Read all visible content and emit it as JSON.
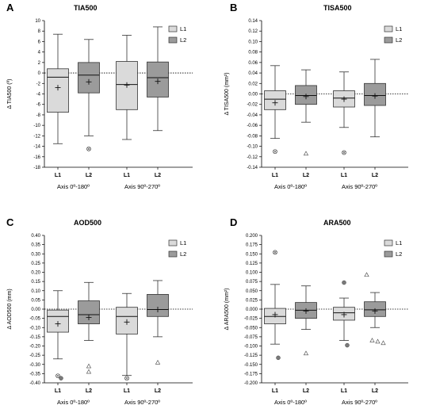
{
  "colors": {
    "L1": "#dadada",
    "L2": "#9b9b9b",
    "stroke": "#333333",
    "outlier_dot": "#7a7a7a"
  },
  "legend_labels": [
    "L1",
    "L2"
  ],
  "chart_data": [
    {
      "type": "box",
      "panel_letter": "A",
      "title": "TIA500",
      "ylabel": "Δ TIA500 (º)",
      "ylim": [
        -18,
        10
      ],
      "yticks": [
        -18,
        -16,
        -14,
        -12,
        -10,
        -8,
        -6,
        -4,
        -2,
        0,
        2,
        4,
        6,
        8,
        10
      ],
      "yticklabels": [
        "-18",
        "-16",
        "-14",
        "-12",
        "-10",
        "-8",
        "-6",
        "-4",
        "-2",
        "0",
        "2",
        "4",
        "6",
        "8",
        "10"
      ],
      "reference_line": 0,
      "legend_position": "top-right",
      "groups": [
        "Axis 0º-180º",
        "Axis 90º-270º"
      ],
      "categories": [
        "L1",
        "L2",
        "L1",
        "L2"
      ],
      "boxes": [
        {
          "series": "L1",
          "min": -13.5,
          "q1": -7.5,
          "median": -0.8,
          "q3": 0.8,
          "max": 7.4,
          "mean": -2.8,
          "outliers": []
        },
        {
          "series": "L2",
          "min": -12.0,
          "q1": -3.8,
          "median": -0.4,
          "q3": 2.0,
          "max": 6.4,
          "mean": -1.7,
          "outliers": [
            {
              "v": -14.5,
              "m": "xcircle"
            }
          ]
        },
        {
          "series": "L1",
          "min": -12.7,
          "q1": -7.0,
          "median": -2.2,
          "q3": 2.2,
          "max": 7.2,
          "mean": -2.3,
          "outliers": []
        },
        {
          "series": "L2",
          "min": -11.0,
          "q1": -4.6,
          "median": -0.9,
          "q3": 2.1,
          "max": 8.8,
          "mean": -1.6,
          "outliers": []
        }
      ]
    },
    {
      "type": "box",
      "panel_letter": "B",
      "title": "TISA500",
      "ylabel": "Δ TISA500 (mm²)",
      "ylim": [
        -0.14,
        0.14
      ],
      "yticks": [
        -0.14,
        -0.12,
        -0.1,
        -0.08,
        -0.06,
        -0.04,
        -0.02,
        0,
        0.02,
        0.04,
        0.06,
        0.08,
        0.1,
        0.12,
        0.14
      ],
      "yticklabels": [
        "-0.14",
        "-0.12",
        "-0.10",
        "-0.08",
        "-0.06",
        "-0.04",
        "-0.02",
        "0.00",
        "0.02",
        "0.04",
        "0.06",
        "0.08",
        "0.10",
        "0.12",
        "0.14"
      ],
      "reference_line": 0,
      "legend_position": "top-right",
      "groups": [
        "Axis 0º-180º",
        "Axis 90º-270º"
      ],
      "categories": [
        "L1",
        "L2",
        "L1",
        "L2"
      ],
      "boxes": [
        {
          "series": "L1",
          "min": -0.085,
          "q1": -0.03,
          "median": -0.01,
          "q3": 0.006,
          "max": 0.054,
          "mean": -0.017,
          "outliers": [
            {
              "v": -0.11,
              "m": "xcircle"
            }
          ]
        },
        {
          "series": "L2",
          "min": -0.054,
          "q1": -0.02,
          "median": -0.003,
          "q3": 0.016,
          "max": 0.046,
          "mean": -0.005,
          "outliers": [
            {
              "v": -0.114,
              "m": "triangle"
            }
          ]
        },
        {
          "series": "L1",
          "min": -0.064,
          "q1": -0.025,
          "median": -0.008,
          "q3": 0.006,
          "max": 0.042,
          "mean": -0.01,
          "outliers": [
            {
              "v": -0.112,
              "m": "xcircle"
            }
          ]
        },
        {
          "series": "L2",
          "min": -0.082,
          "q1": -0.022,
          "median": -0.003,
          "q3": 0.02,
          "max": 0.066,
          "mean": -0.004,
          "outliers": []
        }
      ]
    },
    {
      "type": "box",
      "panel_letter": "C",
      "title": "AOD500",
      "ylabel": "Δ AOD500 (mm)",
      "ylim": [
        -0.4,
        0.4
      ],
      "yticks": [
        -0.4,
        -0.35,
        -0.3,
        -0.25,
        -0.2,
        -0.15,
        -0.1,
        -0.05,
        0,
        0.05,
        0.1,
        0.15,
        0.2,
        0.25,
        0.3,
        0.35,
        0.4
      ],
      "yticklabels": [
        "-0.40",
        "-0.35",
        "-0.30",
        "-0.25",
        "-0.20",
        "-0.15",
        "-0.10",
        "-0.05",
        "0.00",
        "0.05",
        "0.10",
        "0.15",
        "0.20",
        "0.25",
        "0.30",
        "0.35",
        "0.40"
      ],
      "reference_line": 0,
      "legend_position": "top-right",
      "groups": [
        "Axis 0º-180º",
        "Axis 90º-270º"
      ],
      "categories": [
        "L1",
        "L2",
        "L1",
        "L2"
      ],
      "boxes": [
        {
          "series": "L1",
          "min": -0.27,
          "q1": -0.125,
          "median": -0.04,
          "q3": -0.005,
          "max": 0.1,
          "mean": -0.08,
          "outliers": [
            {
              "v": -0.362,
              "m": "xcircle"
            },
            {
              "v": -0.375,
              "m": "dot"
            }
          ]
        },
        {
          "series": "L2",
          "min": -0.17,
          "q1": -0.08,
          "median": -0.03,
          "q3": 0.045,
          "max": 0.145,
          "mean": -0.045,
          "outliers": [
            {
              "v": -0.31,
              "m": "triangle"
            },
            {
              "v": -0.34,
              "m": "triangle"
            }
          ]
        },
        {
          "series": "L1",
          "min": -0.36,
          "q1": -0.135,
          "median": -0.04,
          "q3": 0.01,
          "max": 0.085,
          "mean": -0.07,
          "outliers": [
            {
              "v": -0.375,
              "m": "xcircle"
            }
          ]
        },
        {
          "series": "L2",
          "min": -0.15,
          "q1": -0.04,
          "median": -0.002,
          "q3": 0.08,
          "max": 0.155,
          "mean": -0.002,
          "outliers": [
            {
              "v": -0.29,
              "m": "triangle"
            }
          ]
        }
      ]
    },
    {
      "type": "box",
      "panel_letter": "D",
      "title": "ARA500",
      "ylabel": "Δ ARA500 (mm²)",
      "ylim": [
        -0.2,
        0.2
      ],
      "yticks": [
        -0.2,
        -0.175,
        -0.15,
        -0.125,
        -0.1,
        -0.075,
        -0.05,
        -0.025,
        0,
        0.025,
        0.05,
        0.075,
        0.1,
        0.125,
        0.15,
        0.175,
        0.2
      ],
      "yticklabels": [
        "-0.200",
        "-0.175",
        "-0.150",
        "-0.125",
        "-0.100",
        "-0.075",
        "-0.050",
        "-0.025",
        "0.000",
        "0.025",
        "0.050",
        "0.075",
        "0.100",
        "0.125",
        "0.150",
        "0.175",
        "0.200"
      ],
      "reference_line": 0,
      "legend_position": "top-right",
      "groups": [
        "Axis 0º-180º",
        "Axis 90º-270º"
      ],
      "categories": [
        "L1",
        "L2",
        "L1",
        "L2"
      ],
      "boxes": [
        {
          "series": "L1",
          "min": -0.095,
          "q1": -0.04,
          "median": -0.02,
          "q3": 0.002,
          "max": 0.067,
          "mean": -0.015,
          "outliers": [
            {
              "v": 0.154,
              "m": "xcircle"
            },
            {
              "v": -0.132,
              "m": "dot"
            }
          ]
        },
        {
          "series": "L2",
          "min": -0.055,
          "q1": -0.025,
          "median": -0.003,
          "q3": 0.018,
          "max": 0.063,
          "mean": -0.005,
          "outliers": [
            {
              "v": -0.12,
              "m": "triangle"
            }
          ]
        },
        {
          "series": "L1",
          "min": -0.085,
          "q1": -0.03,
          "median": -0.01,
          "q3": 0.005,
          "max": 0.03,
          "mean": -0.015,
          "outliers": [
            {
              "v": 0.072,
              "m": "dot"
            },
            {
              "v": -0.098,
              "m": "dot"
            }
          ]
        },
        {
          "series": "L2",
          "min": -0.05,
          "q1": -0.02,
          "median": -0.002,
          "q3": 0.02,
          "max": 0.045,
          "mean": -0.005,
          "outliers": [
            {
              "v": 0.093,
              "m": "triangle"
            },
            {
              "v": -0.085,
              "m": "triangle"
            },
            {
              "v": -0.088,
              "m": "triangle"
            },
            {
              "v": -0.092,
              "m": "triangle"
            }
          ]
        }
      ]
    }
  ]
}
